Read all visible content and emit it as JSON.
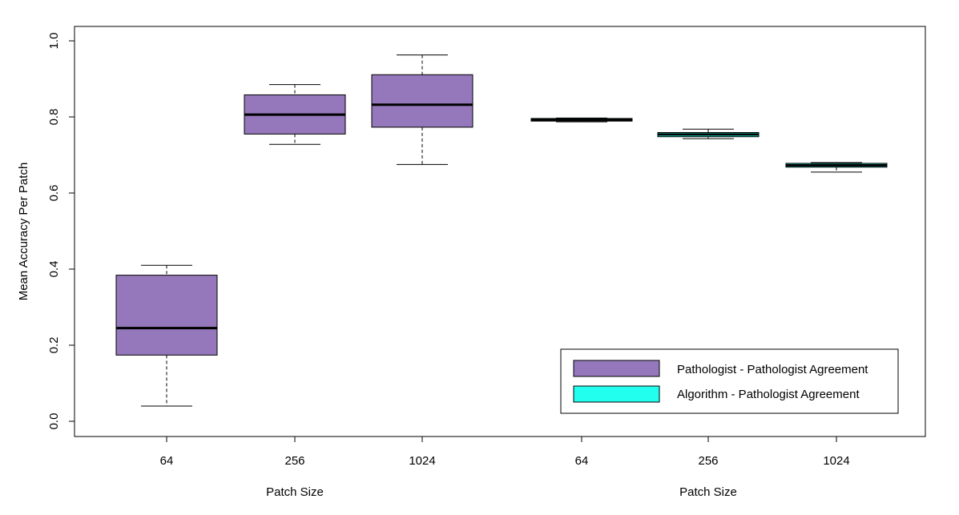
{
  "chart_data": {
    "type": "boxplot",
    "ylabel": "Mean Accuracy Per Patch",
    "xlabel_left": "Patch Size",
    "xlabel_right": "Patch Size",
    "ylim": [
      0.0,
      1.0
    ],
    "yticks": [
      "0.0",
      "0.2",
      "0.4",
      "0.6",
      "0.8",
      "1.0"
    ],
    "grid": false,
    "legend_position": "bottom-right",
    "series": [
      {
        "name": "Pathologist - Pathologist Agreement",
        "color": "#9578BB"
      },
      {
        "name": "Algorithm - Pathologist Agreement",
        "color": "#22FFEE"
      }
    ],
    "boxes": [
      {
        "category": "64",
        "series": 0,
        "min": 0.04,
        "q1": 0.174,
        "median": 0.245,
        "q3": 0.384,
        "max": 0.41
      },
      {
        "category": "256",
        "series": 0,
        "min": 0.728,
        "q1": 0.755,
        "median": 0.806,
        "q3": 0.858,
        "max": 0.885
      },
      {
        "category": "1024",
        "series": 0,
        "min": 0.675,
        "q1": 0.773,
        "median": 0.832,
        "q3": 0.911,
        "max": 0.963
      },
      {
        "category": "64",
        "series": 1,
        "min": 0.787,
        "q1": 0.789,
        "median": 0.792,
        "q3": 0.796,
        "max": 0.797
      },
      {
        "category": "256",
        "series": 1,
        "min": 0.743,
        "q1": 0.748,
        "median": 0.754,
        "q3": 0.759,
        "max": 0.768
      },
      {
        "category": "1024",
        "series": 1,
        "min": 0.655,
        "q1": 0.668,
        "median": 0.673,
        "q3": 0.678,
        "max": 0.68
      }
    ]
  }
}
